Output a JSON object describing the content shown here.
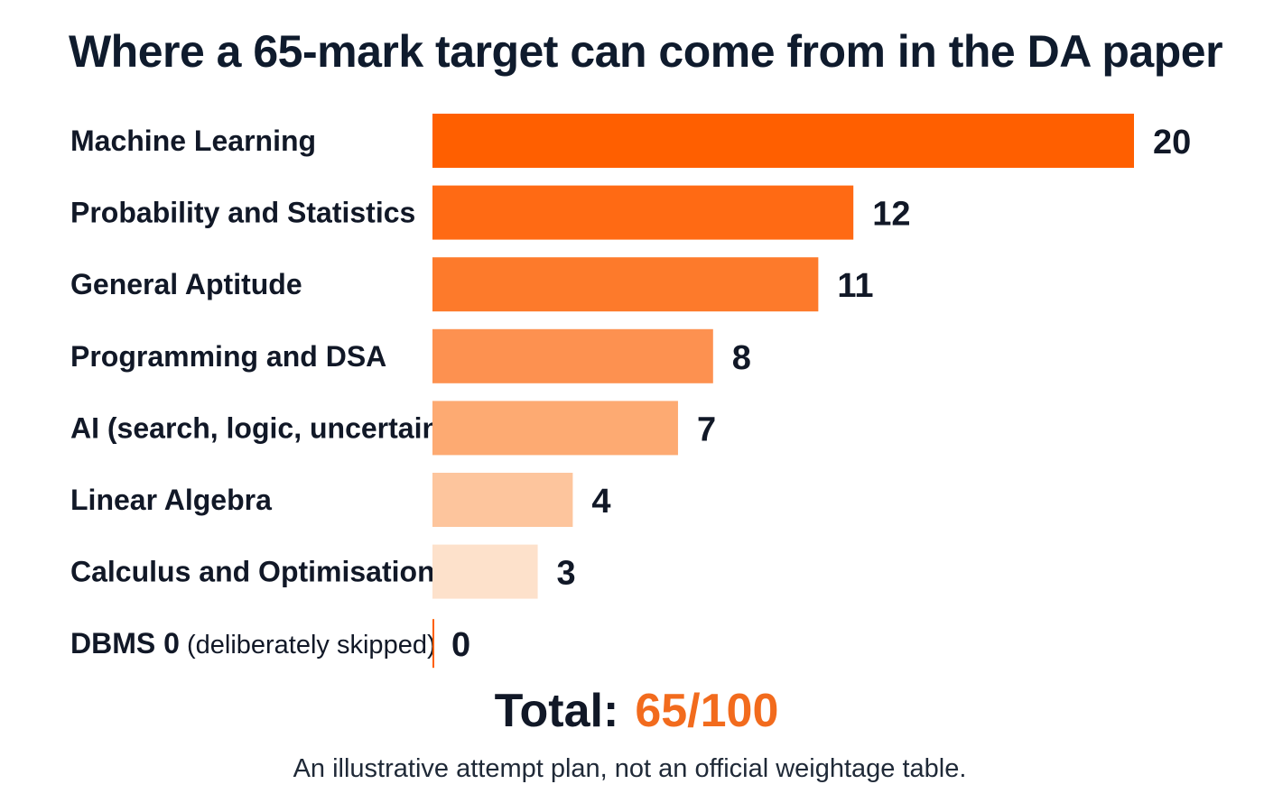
{
  "chart_data": {
    "type": "bar",
    "orientation": "horizontal",
    "title": "Where a 65-mark target can come from in the DA paper",
    "categories": [
      "Machine Learning",
      "Probability and Statistics",
      "General Aptitude",
      "Programming and DSA",
      "AI (search, logic, uncertainty)",
      "Linear Algebra",
      "Calculus and Optimisation",
      "DBMS 0"
    ],
    "category_notes": [
      "",
      "",
      "",
      "",
      "",
      "",
      "",
      "(deliberately skipped)"
    ],
    "values": [
      20,
      12,
      11,
      8,
      7,
      4,
      3,
      0
    ],
    "xlim": [
      0,
      20
    ],
    "grid": false,
    "legend": "none",
    "bar_colors": [
      "#ff5f00",
      "#ff6a14",
      "#fd7a2b",
      "#fd9150",
      "#fdaa72",
      "#fdc59d",
      "#fde1cb",
      "#ff5f00"
    ],
    "label_color": "#111827"
  },
  "total": {
    "label": "Total:",
    "value": "65/100",
    "value_color": "#f26b1d"
  },
  "footnote": "An illustrative attempt plan, not an official weightage table."
}
